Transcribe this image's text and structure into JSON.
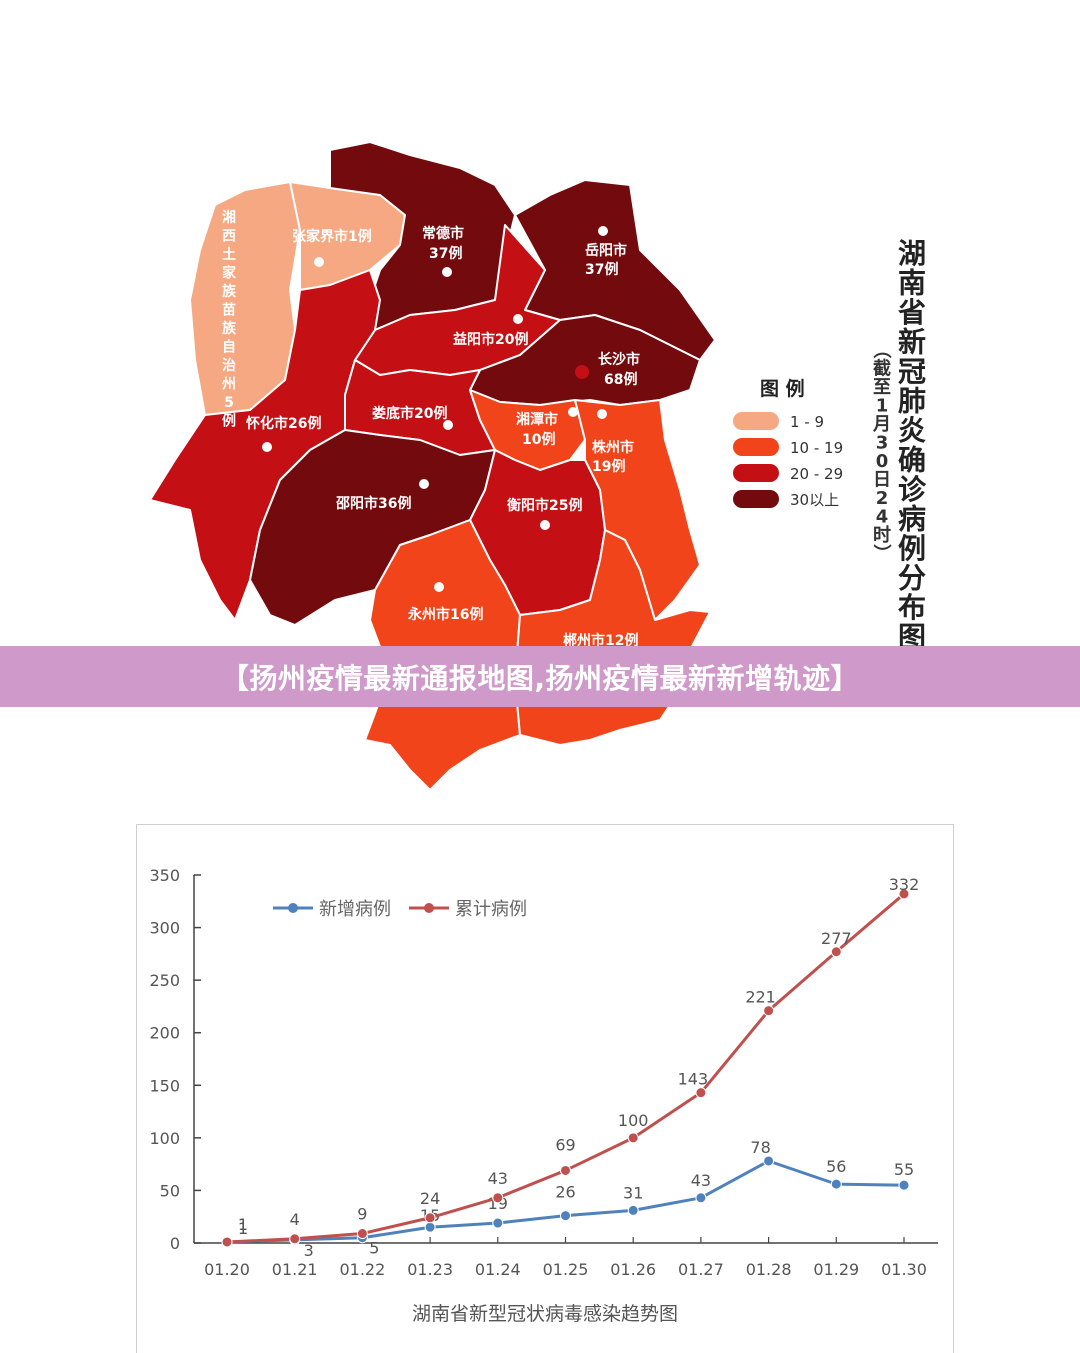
{
  "banner": {
    "text": "【扬州疫情最新通报地图,扬州疫情最新新增轨迹】"
  },
  "map": {
    "title": "湖南省新冠肺炎确诊病例分布图",
    "subtitle": "（截至1月30日24时）",
    "legend": {
      "title": "图 例",
      "items": [
        {
          "label": "1 - 9",
          "color": "#f5a882"
        },
        {
          "label": "10 - 19",
          "color": "#f2441a"
        },
        {
          "label": "20 - 29",
          "color": "#c40f14"
        },
        {
          "label": "30以上",
          "color": "#730a0d"
        }
      ]
    },
    "cities": [
      {
        "id": "xiangxi",
        "label": "湘西土家族苗族自治州5例",
        "color": "#f5a882"
      },
      {
        "id": "zhangjiajie",
        "label": "张家界市1例",
        "color": "#f5a882"
      },
      {
        "id": "changde",
        "line1": "常德市",
        "line2": "37例",
        "color": "#730a0d"
      },
      {
        "id": "yueyang",
        "line1": "岳阳市",
        "line2": "37例",
        "color": "#730a0d"
      },
      {
        "id": "yiyang",
        "label": "益阳市20例",
        "color": "#c40f14"
      },
      {
        "id": "changsha",
        "line1": "长沙市",
        "line2": "68例",
        "color": "#730a0d"
      },
      {
        "id": "huaihua",
        "label": "怀化市26例",
        "color": "#c40f14"
      },
      {
        "id": "loudi",
        "label": "娄底市20例",
        "color": "#c40f14"
      },
      {
        "id": "xiangtan",
        "line1": "湘潭市",
        "line2": "10例",
        "color": "#f2441a"
      },
      {
        "id": "zhuzhou",
        "line1": "株州市",
        "line2": "19例",
        "color": "#f2441a"
      },
      {
        "id": "shaoyang",
        "label": "邵阳市36例",
        "color": "#730a0d"
      },
      {
        "id": "hengyang",
        "label": "衡阳市25例",
        "color": "#c40f14"
      },
      {
        "id": "yongzhou",
        "label": "永州市16例",
        "color": "#f2441a"
      },
      {
        "id": "chenzhou",
        "label": "郴州市12例",
        "color": "#f2441a"
      }
    ]
  },
  "chart_data": {
    "type": "line",
    "title": "湖南省新型冠状病毒感染趋势图",
    "categories": [
      "01.20",
      "01.21",
      "01.22",
      "01.23",
      "01.24",
      "01.25",
      "01.26",
      "01.27",
      "01.28",
      "01.29",
      "01.30"
    ],
    "ylim": [
      0,
      350
    ],
    "yticks": [
      0,
      50,
      100,
      150,
      200,
      250,
      300,
      350
    ],
    "legend_position": "top-left",
    "series": [
      {
        "name": "新增病例",
        "color": "#4f81bd",
        "values": [
          1,
          3,
          5,
          15,
          19,
          26,
          31,
          43,
          78,
          56,
          55
        ]
      },
      {
        "name": "累计病例",
        "color": "#c0504d",
        "values": [
          1,
          4,
          9,
          24,
          43,
          69,
          100,
          143,
          221,
          277,
          332
        ]
      }
    ]
  }
}
